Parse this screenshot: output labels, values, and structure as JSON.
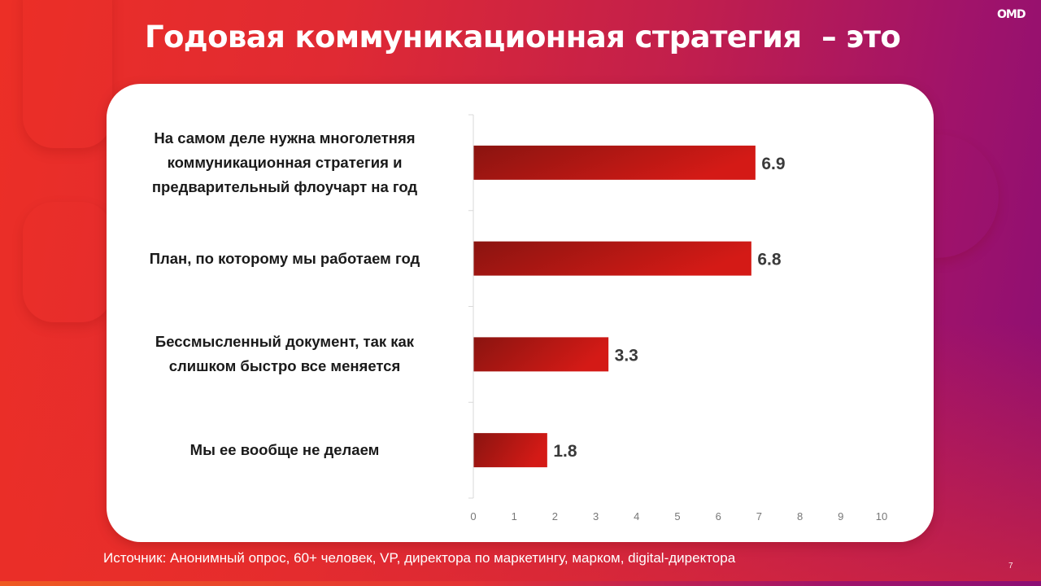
{
  "slide": {
    "title": "Годовая коммуникационная стратегия  – это",
    "logo_text": "OMD",
    "source": "Источник: Анонимный опрос, 60+ человек, VP, директора по маркетингу, марком, digital-директора",
    "page_number": "7"
  },
  "colors": {
    "bar_dark": "#8a1410",
    "bar_light": "#d41a16",
    "value_label": "#3a3a3a",
    "tick_label": "#777777",
    "axis_line": "#d9d9d9",
    "background_left": "#ec2f26",
    "background_right": "#8c0e74"
  },
  "chart_data": {
    "type": "bar",
    "orientation": "horizontal",
    "title": "Годовая коммуникационная стратегия  – это",
    "xlabel": "",
    "ylabel": "",
    "xlim": [
      0,
      10
    ],
    "grid": false,
    "legend": "none",
    "x_ticks": [
      "0",
      "1",
      "2",
      "3",
      "4",
      "5",
      "6",
      "7",
      "8",
      "9",
      "10"
    ],
    "categories": [
      [
        "На самом деле нужна многолетняя",
        "коммуникационная стратегия и",
        "предварительный флоучарт на год"
      ],
      [
        "План, по которому мы работаем год"
      ],
      [
        "Бессмысленный документ, так как",
        "слишком быстро все меняется"
      ],
      [
        "Мы ее вообще не делаем"
      ]
    ],
    "values": [
      6.9,
      6.8,
      3.3,
      1.8
    ],
    "value_labels": [
      "6.9",
      "6.8",
      "3.3",
      "1.8"
    ]
  }
}
